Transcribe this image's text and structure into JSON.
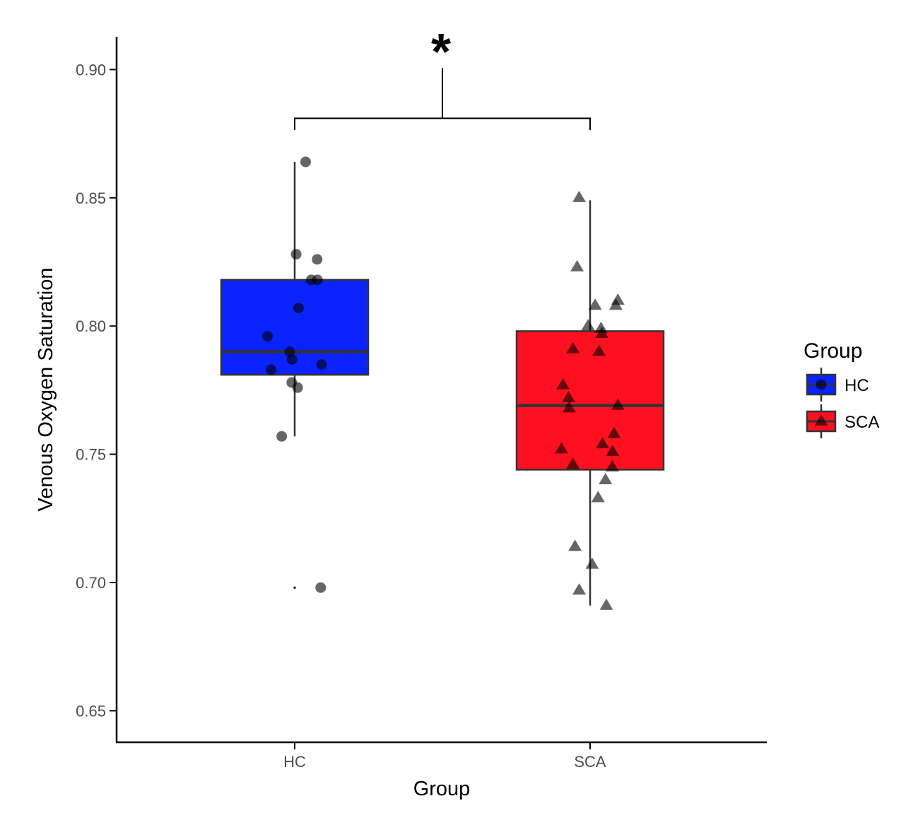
{
  "chart_data": {
    "type": "box",
    "title": "",
    "xlabel": "Group",
    "ylabel": "Venous Oxygen Saturation",
    "ylim": [
      0.64,
      0.912
    ],
    "y_ticks": [
      0.65,
      0.7,
      0.75,
      0.8,
      0.85,
      0.9
    ],
    "y_tick_labels": [
      "0.65",
      "0.70",
      "0.75",
      "0.80",
      "0.85",
      "0.90"
    ],
    "categories": [
      "HC",
      "SCA"
    ],
    "grid": false,
    "legend": {
      "title": "Group",
      "position": "right",
      "entries": [
        {
          "label": "HC",
          "color": "#0a23ff",
          "marker": "circle"
        },
        {
          "label": "SCA",
          "color": "#ff1020",
          "marker": "triangle"
        }
      ]
    },
    "boxes": [
      {
        "name": "HC",
        "color": "#0a23ff",
        "whisker_low": 0.757,
        "q1": 0.781,
        "median": 0.79,
        "q3": 0.818,
        "whisker_high": 0.864,
        "outliers": [
          0.698
        ]
      },
      {
        "name": "SCA",
        "color": "#ff1020",
        "whisker_low": 0.691,
        "q1": 0.744,
        "median": 0.769,
        "q3": 0.798,
        "whisker_high": 0.849,
        "outliers": []
      }
    ],
    "points": [
      {
        "group": "HC",
        "marker": "circle",
        "x_offset": [
          0.037,
          0.005,
          0.076,
          0.077,
          0.056,
          0.013,
          -0.092,
          -0.017,
          -0.009,
          -0.08,
          0.091,
          -0.01,
          0.01,
          -0.044,
          0.088
        ],
        "y": [
          0.864,
          0.828,
          0.826,
          0.818,
          0.818,
          0.807,
          0.796,
          0.79,
          0.787,
          0.783,
          0.785,
          0.778,
          0.776,
          0.757,
          0.698
        ]
      },
      {
        "group": "SCA",
        "marker": "triangle",
        "x_offset": [
          -0.037,
          -0.044,
          0.017,
          0.094,
          0.087,
          -0.007,
          0.037,
          0.04,
          -0.058,
          0.03,
          -0.092,
          -0.073,
          0.094,
          -0.071,
          0.081,
          0.042,
          0.076,
          -0.097,
          -0.058,
          0.075,
          0.052,
          0.027,
          -0.051,
          0.007,
          -0.037,
          0.055
        ],
        "y": [
          0.85,
          0.823,
          0.808,
          0.81,
          0.808,
          0.8,
          0.799,
          0.797,
          0.791,
          0.79,
          0.777,
          0.772,
          0.769,
          0.768,
          0.758,
          0.754,
          0.751,
          0.752,
          0.746,
          0.745,
          0.74,
          0.733,
          0.714,
          0.707,
          0.697,
          0.691
        ]
      }
    ],
    "significance": {
      "label": "*",
      "between": [
        "HC",
        "SCA"
      ],
      "y": 0.881
    }
  }
}
